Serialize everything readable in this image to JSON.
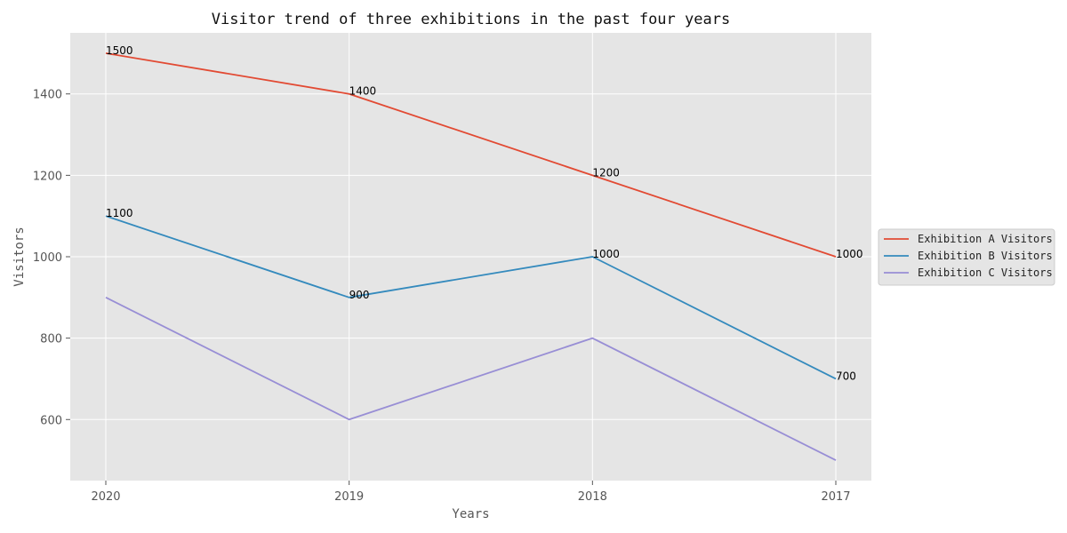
{
  "chart_data": {
    "type": "line",
    "title": "Visitor trend of three exhibitions in the past four years",
    "xlabel": "Years",
    "ylabel": "Visitors",
    "categories": [
      "2020",
      "2019",
      "2018",
      "2017"
    ],
    "ylim": [
      450,
      1550
    ],
    "yticks": [
      600,
      800,
      1000,
      1200,
      1400
    ],
    "grid": true,
    "legend_position": "right",
    "plot_background": "#e5e5e5",
    "grid_color": "#ffffff",
    "series": [
      {
        "name": "Exhibition A Visitors",
        "values": [
          1500,
          1400,
          1200,
          1000
        ],
        "color": "#e24a33",
        "data_labels": [
          "1500",
          "1400",
          "1200",
          "1000"
        ]
      },
      {
        "name": "Exhibition B Visitors",
        "values": [
          1100,
          900,
          1000,
          700
        ],
        "color": "#348abd",
        "data_labels": [
          "1100",
          "900",
          "1000",
          "700"
        ]
      },
      {
        "name": "Exhibition C Visitors",
        "values": [
          900,
          600,
          800,
          500
        ],
        "color": "#988ed5",
        "data_labels": []
      }
    ]
  }
}
